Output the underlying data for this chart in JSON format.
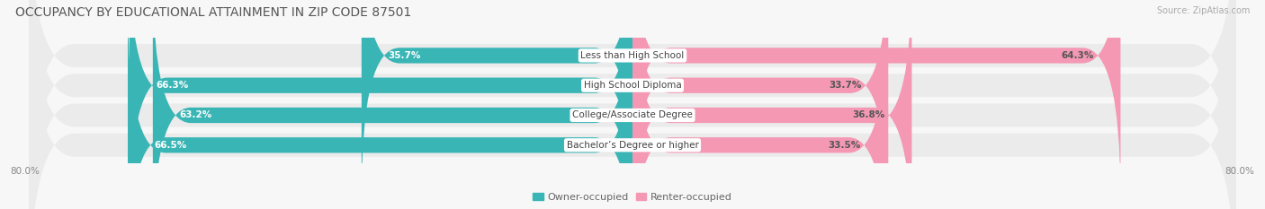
{
  "title": "OCCUPANCY BY EDUCATIONAL ATTAINMENT IN ZIP CODE 87501",
  "source": "Source: ZipAtlas.com",
  "categories": [
    "Less than High School",
    "High School Diploma",
    "College/Associate Degree",
    "Bachelor’s Degree or higher"
  ],
  "owner_pct": [
    35.7,
    66.3,
    63.2,
    66.5
  ],
  "renter_pct": [
    64.3,
    33.7,
    36.8,
    33.5
  ],
  "owner_color": "#3ab5b5",
  "renter_color": "#f498b4",
  "row_bg_color": "#ebebeb",
  "fig_bg_color": "#f7f7f7",
  "axis_min": -80.0,
  "axis_max": 80.0,
  "x_tick_labels_left": "80.0%",
  "x_tick_labels_right": "80.0%",
  "legend_labels": [
    "Owner-occupied",
    "Renter-occupied"
  ],
  "title_fontsize": 10,
  "source_fontsize": 7,
  "bar_label_fontsize": 7.5,
  "category_label_fontsize": 7.5,
  "legend_fontsize": 8,
  "axis_label_fontsize": 7.5,
  "figsize": [
    14.06,
    2.33
  ],
  "dpi": 100
}
